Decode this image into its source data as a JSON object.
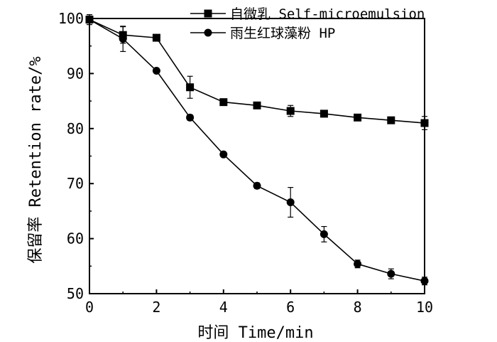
{
  "chart_data": {
    "type": "line",
    "xlabel": "时间 Time/min",
    "ylabel": "保留率 Retention rate/%",
    "xlim": [
      0,
      10
    ],
    "ylim": [
      50,
      100
    ],
    "x_ticks": [
      "0",
      "2",
      "4",
      "6",
      "8",
      "10"
    ],
    "y_ticks": [
      "50",
      "60",
      "70",
      "80",
      "90",
      "100"
    ],
    "grid": false,
    "legend_position": "top-right",
    "x": [
      0,
      1,
      2,
      3,
      4,
      5,
      6,
      7,
      8,
      9,
      10
    ],
    "series": [
      {
        "name": "自微乳 Self-microemulsion",
        "marker": "square",
        "color": "#000000",
        "values": [
          99.8,
          97.0,
          96.5,
          87.5,
          84.8,
          84.2,
          83.2,
          82.7,
          82.0,
          81.5,
          81.0
        ],
        "error": [
          0.9,
          1.5,
          0.5,
          2.0,
          0.5,
          0.5,
          1.0,
          0.6,
          0.5,
          0.6,
          1.2
        ]
      },
      {
        "name": "雨生红球藻粉 HP",
        "marker": "circle",
        "color": "#000000",
        "values": [
          99.8,
          96.3,
          90.5,
          82.0,
          75.3,
          69.6,
          66.6,
          60.8,
          55.4,
          53.6,
          52.3
        ],
        "error": [
          0.9,
          2.3,
          0.4,
          0.5,
          0.4,
          0.5,
          2.7,
          1.4,
          0.7,
          0.9,
          0.7
        ]
      }
    ]
  }
}
